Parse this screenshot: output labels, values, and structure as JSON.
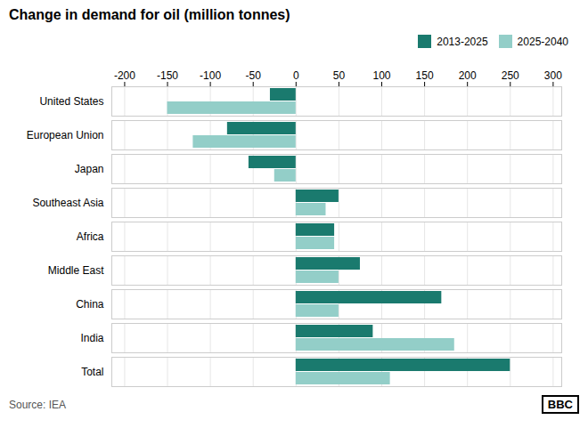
{
  "chart_data": {
    "type": "bar",
    "orientation": "horizontal",
    "title": "Change in demand for oil (million tonnes)",
    "categories": [
      "United States",
      "European Union",
      "Japan",
      "Southeast Asia",
      "Africa",
      "Middle East",
      "China",
      "India",
      "Total"
    ],
    "series": [
      {
        "name": "2013-2025",
        "color": "#1a7a6e",
        "values": [
          -30,
          -80,
          -55,
          50,
          45,
          75,
          170,
          90,
          250
        ]
      },
      {
        "name": "2025-2040",
        "color": "#93cec8",
        "values": [
          -150,
          -120,
          -25,
          35,
          45,
          50,
          50,
          185,
          110
        ]
      }
    ],
    "xlim": [
      -215,
      310
    ],
    "xticks": [
      -200,
      -150,
      -100,
      -50,
      0,
      50,
      100,
      150,
      200,
      250,
      300
    ],
    "grid": true,
    "legend": "upper right",
    "source": "Source: IEA",
    "annotations": [
      "BBC"
    ]
  }
}
